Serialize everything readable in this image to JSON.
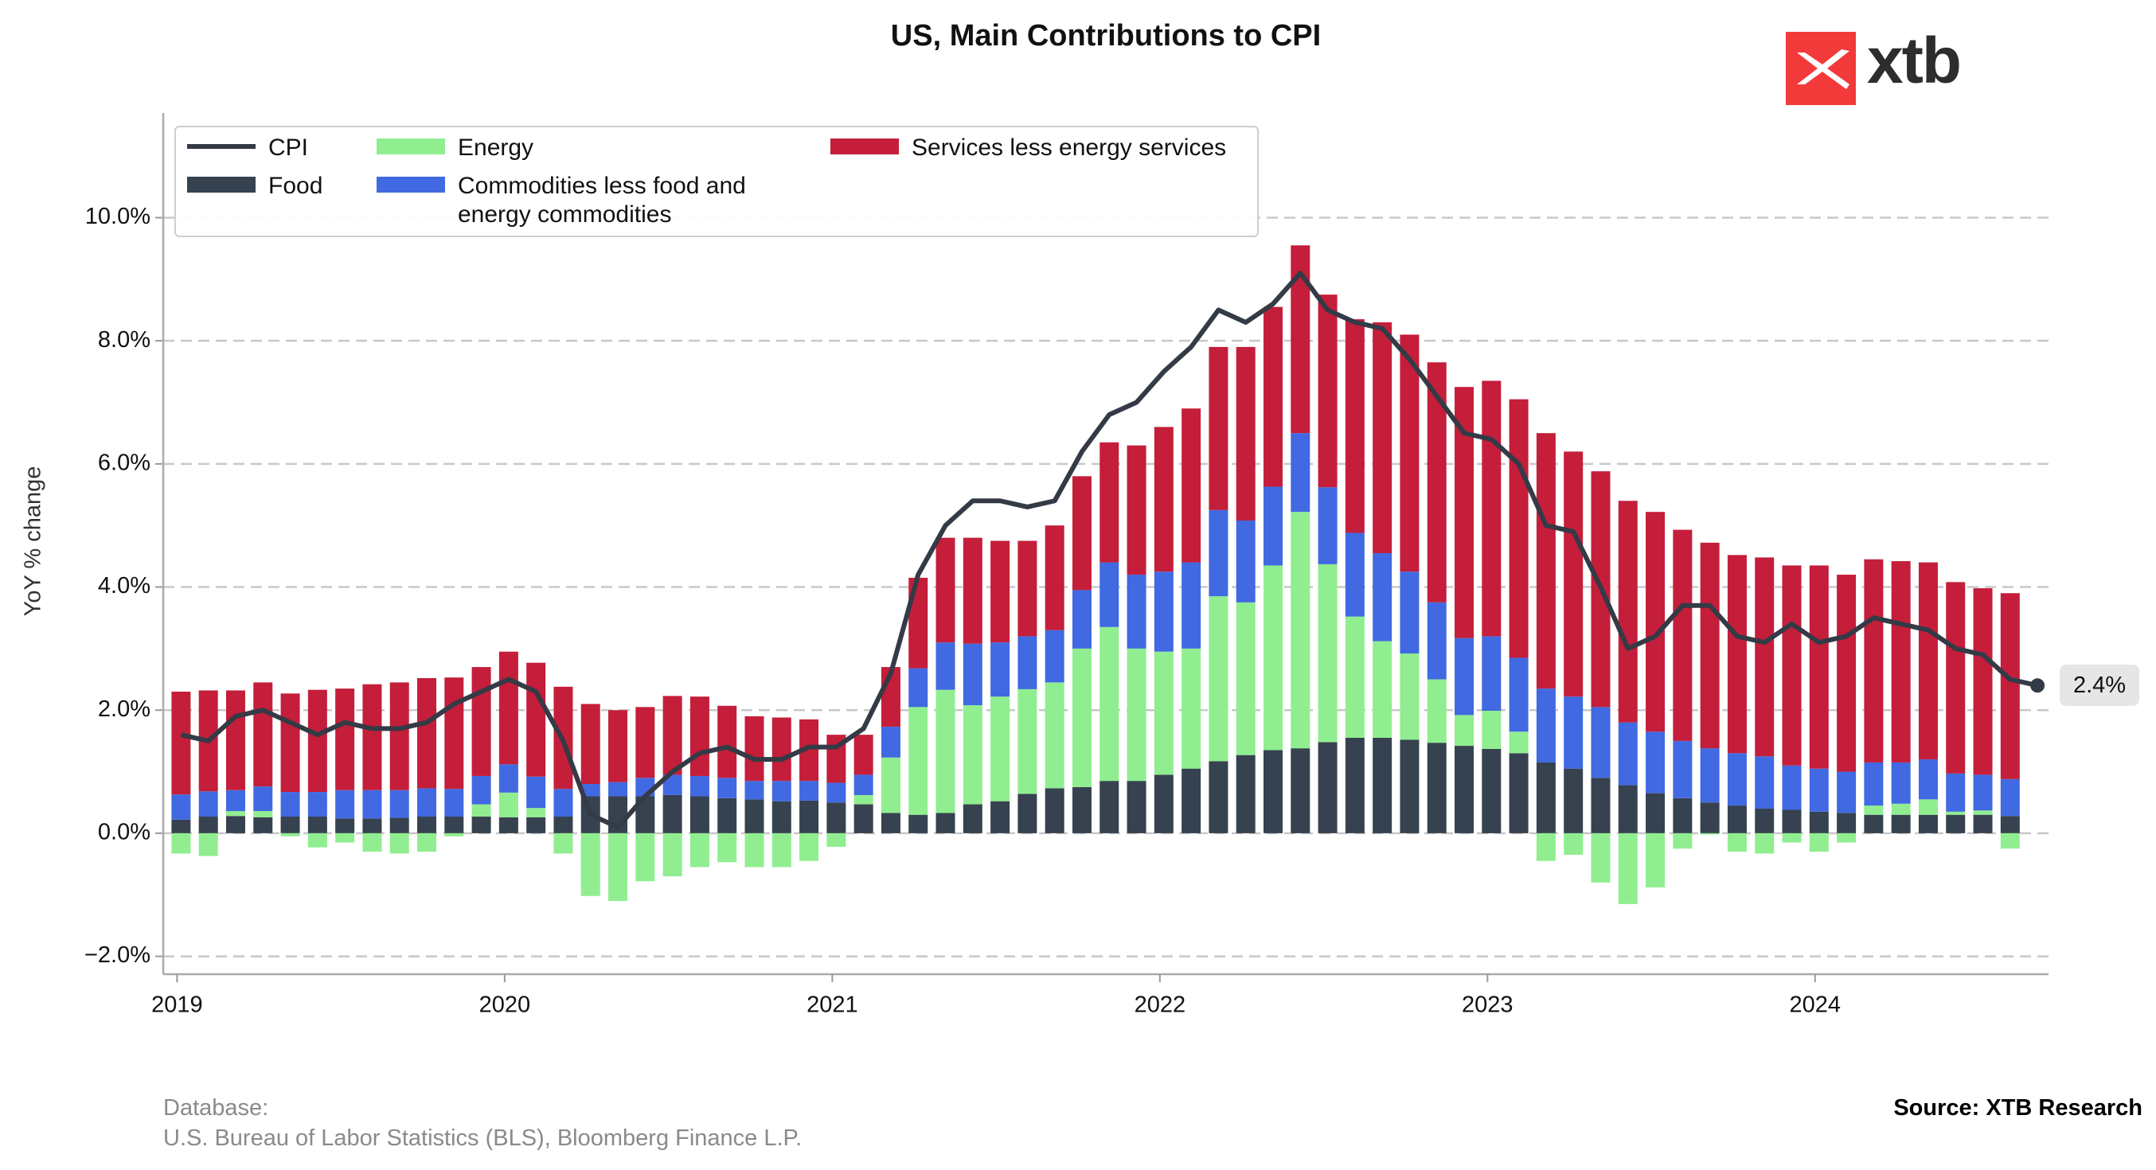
{
  "title": "US, Main Contributions to CPI",
  "logo": "xtb",
  "source": "Source: XTB Research",
  "notes": [
    "Database:",
    "U.S. Bureau of Labor Statistics (BLS), Bloomberg Finance L.P."
  ],
  "chart_data": {
    "type": "bar",
    "stacked": true,
    "ylabel": "YoY % change",
    "categories": [
      "2019",
      null,
      null,
      null,
      null,
      null,
      null,
      null,
      null,
      null,
      null,
      null,
      "2020",
      null,
      null,
      null,
      null,
      null,
      null,
      null,
      null,
      null,
      null,
      null,
      "2021",
      null,
      null,
      null,
      null,
      null,
      null,
      null,
      null,
      null,
      null,
      null,
      "2022",
      null,
      null,
      null,
      null,
      null,
      null,
      null,
      null,
      null,
      null,
      null,
      "2023",
      null,
      null,
      null,
      null,
      null,
      null,
      null,
      null,
      null,
      null,
      null,
      "2024",
      null,
      null,
      null,
      null,
      null,
      null,
      null,
      null
    ],
    "ylim": [
      -2.29,
      11.7
    ],
    "yticks": [
      {
        "value": -2,
        "label": "−2.0%"
      },
      {
        "value": 0,
        "label": "0.0%"
      },
      {
        "value": 2,
        "label": "2.0%"
      },
      {
        "value": 4,
        "label": "4.0%"
      },
      {
        "value": 6,
        "label": "6.0%"
      },
      {
        "value": 8,
        "label": "8.0%"
      },
      {
        "value": 10,
        "label": "10.0%"
      }
    ],
    "grid": true,
    "legend": "upper left",
    "series": [
      {
        "name": "Food",
        "color": "#36424f",
        "type": "bar",
        "values": [
          0.22,
          0.27,
          0.28,
          0.26,
          0.27,
          0.27,
          0.24,
          0.24,
          0.25,
          0.27,
          0.27,
          0.27,
          0.26,
          0.26,
          0.27,
          0.6,
          0.6,
          0.6,
          0.62,
          0.6,
          0.57,
          0.55,
          0.52,
          0.53,
          0.5,
          0.47,
          0.33,
          0.3,
          0.33,
          0.47,
          0.52,
          0.64,
          0.73,
          0.75,
          0.85,
          0.85,
          0.95,
          1.05,
          1.17,
          1.27,
          1.35,
          1.38,
          1.48,
          1.55,
          1.55,
          1.52,
          1.47,
          1.42,
          1.37,
          1.3,
          1.15,
          1.05,
          0.9,
          0.78,
          0.65,
          0.57,
          0.5,
          0.45,
          0.4,
          0.38,
          0.35,
          0.33,
          0.3,
          0.3,
          0.3,
          0.3,
          0.3,
          0.28,
          null
        ]
      },
      {
        "name": "Energy",
        "color": "#90ee90",
        "type": "bar",
        "values": [
          -0.33,
          -0.37,
          0.08,
          0.1,
          -0.05,
          -0.23,
          -0.15,
          -0.3,
          -0.33,
          -0.3,
          -0.05,
          0.2,
          0.4,
          0.15,
          -0.33,
          -1.02,
          -1.1,
          -0.78,
          -0.7,
          -0.55,
          -0.47,
          -0.55,
          -0.55,
          -0.45,
          -0.22,
          0.15,
          0.9,
          1.75,
          2,
          1.61,
          1.7,
          1.7,
          1.72,
          2.25,
          2.5,
          2.15,
          2,
          1.95,
          2.68,
          2.48,
          3,
          3.84,
          2.89,
          1.97,
          1.57,
          1.4,
          1.03,
          0.5,
          0.62,
          0.35,
          -0.45,
          -0.35,
          -0.8,
          -1.15,
          -0.88,
          -0.25,
          -0.02,
          -0.3,
          -0.33,
          -0.15,
          -0.3,
          -0.15,
          0.15,
          0.18,
          0.25,
          0.05,
          0.07,
          -0.25,
          null
        ]
      },
      {
        "name": "Commodities less food and energy commodities",
        "color": "#4169e1",
        "type": "bar",
        "values": [
          0.41,
          0.41,
          0.34,
          0.4,
          0.4,
          0.4,
          0.46,
          0.46,
          0.45,
          0.46,
          0.45,
          0.46,
          0.46,
          0.51,
          0.45,
          0.2,
          0.23,
          0.3,
          0.33,
          0.33,
          0.33,
          0.3,
          0.33,
          0.32,
          0.32,
          0.33,
          0.5,
          0.63,
          0.77,
          1.0,
          0.88,
          0.86,
          0.85,
          0.95,
          1.05,
          1.2,
          1.3,
          1.4,
          1.4,
          1.33,
          1.28,
          1.28,
          1.25,
          1.36,
          1.43,
          1.33,
          1.25,
          1.25,
          1.21,
          1.2,
          1.2,
          1.17,
          1.15,
          1.02,
          1.0,
          0.93,
          0.88,
          0.85,
          0.85,
          0.72,
          0.7,
          0.67,
          0.7,
          0.67,
          0.65,
          0.62,
          0.58,
          0.6,
          null
        ]
      },
      {
        "name": "Services less energy services",
        "color": "#c41e3a",
        "type": "bar",
        "values": [
          1.67,
          1.64,
          1.62,
          1.69,
          1.6,
          1.66,
          1.65,
          1.72,
          1.75,
          1.79,
          1.81,
          1.77,
          1.83,
          1.85,
          1.66,
          1.3,
          1.17,
          1.15,
          1.28,
          1.29,
          1.17,
          1.05,
          1.03,
          1.0,
          0.78,
          0.65,
          0.97,
          1.47,
          1.7,
          1.72,
          1.65,
          1.55,
          1.7,
          1.85,
          1.95,
          2.1,
          2.35,
          2.5,
          2.65,
          2.82,
          2.92,
          3.05,
          3.13,
          3.47,
          3.75,
          3.85,
          3.9,
          4.08,
          4.15,
          4.2,
          4.15,
          3.98,
          3.83,
          3.6,
          3.57,
          3.43,
          3.34,
          3.22,
          3.23,
          3.25,
          3.3,
          3.2,
          3.3,
          3.27,
          3.2,
          3.11,
          3.03,
          3.02,
          null
        ]
      },
      {
        "name": "CPI",
        "color": "#343a46",
        "type": "line",
        "values": [
          1.6,
          1.5,
          1.9,
          2.0,
          1.8,
          1.6,
          1.8,
          1.7,
          1.7,
          1.8,
          2.1,
          2.3,
          2.5,
          2.3,
          1.5,
          0.3,
          0.1,
          0.6,
          1.0,
          1.3,
          1.4,
          1.2,
          1.2,
          1.4,
          1.4,
          1.7,
          2.6,
          4.2,
          5.0,
          5.4,
          5.4,
          5.3,
          5.4,
          6.2,
          6.8,
          7.0,
          7.5,
          7.9,
          8.5,
          8.3,
          8.6,
          9.1,
          8.5,
          8.3,
          8.2,
          7.7,
          7.1,
          6.5,
          6.4,
          6.0,
          5.0,
          4.9,
          4.0,
          3.0,
          3.2,
          3.7,
          3.7,
          3.2,
          3.1,
          3.4,
          3.1,
          3.2,
          3.5,
          3.4,
          3.3,
          3.0,
          2.9,
          2.5,
          2.4
        ]
      }
    ],
    "annotations": [
      {
        "value": 2.4,
        "label": "2.4%"
      }
    ]
  }
}
